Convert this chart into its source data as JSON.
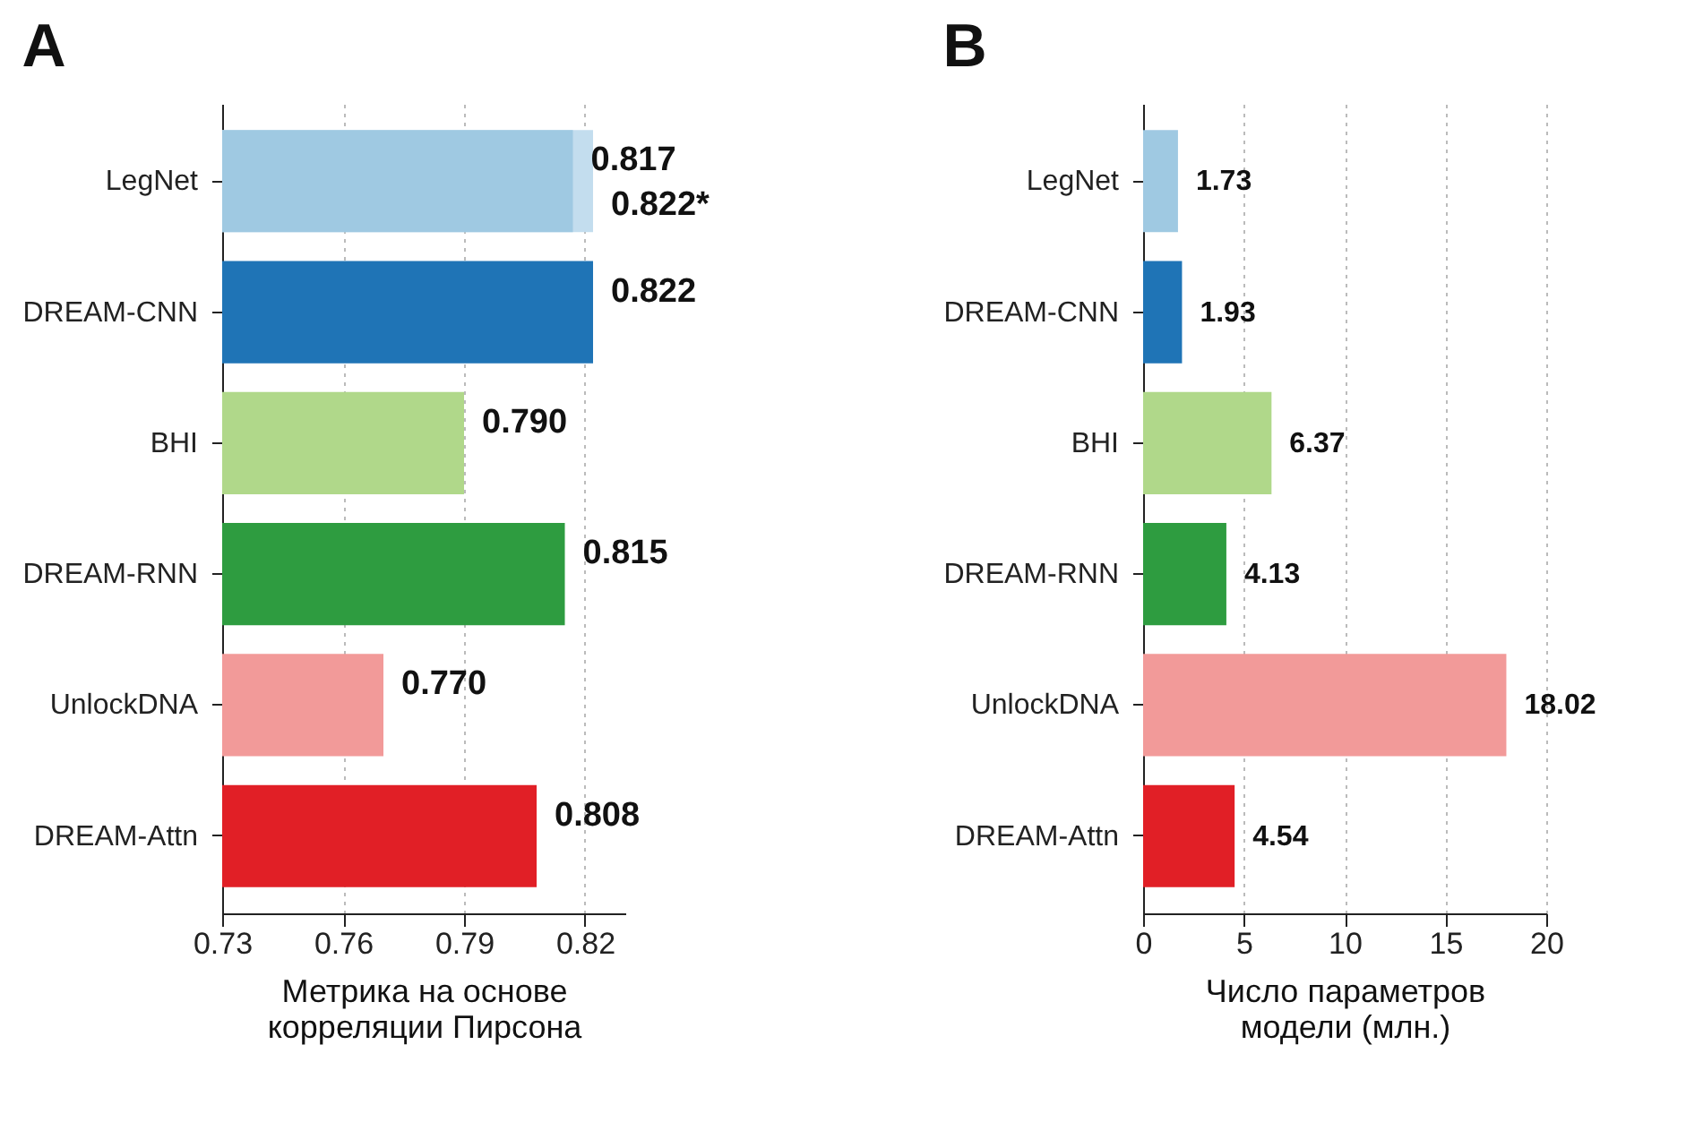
{
  "chart_data": [
    {
      "type": "bar",
      "title": "A",
      "orientation": "horizontal",
      "categories": [
        "LegNet",
        "DREAM-CNN",
        "BHI",
        "DREAM-RNN",
        "UnlockDNA",
        "DREAM-Attn"
      ],
      "xlabel": "Метрика на основе\nкорреляции Пирсона",
      "xlim": [
        0.73,
        0.83
      ],
      "xticks": [
        0.73,
        0.76,
        0.79,
        0.82
      ],
      "grid": "x",
      "series": [
        {
          "colors": [
            "#9fc9e2",
            "#1f74b6",
            "#b0d88a",
            "#2e9c40",
            "#f29a99",
            "#e11f26"
          ],
          "values": [
            0.817,
            0.822,
            0.79,
            0.815,
            0.77,
            0.808
          ],
          "value_labels": [
            "0.817",
            "0.822",
            "0.790",
            "0.815",
            "0.770",
            "0.808"
          ]
        },
        {
          "colors": [
            "#c3ddee",
            null,
            null,
            null,
            null,
            null
          ],
          "values": [
            0.822,
            null,
            null,
            null,
            null,
            null
          ],
          "value_labels": [
            "0.822*",
            null,
            null,
            null,
            null,
            null
          ]
        }
      ]
    },
    {
      "type": "bar",
      "title": "B",
      "orientation": "horizontal",
      "categories": [
        "LegNet",
        "DREAM-CNN",
        "BHI",
        "DREAM-RNN",
        "UnlockDNA",
        "DREAM-Attn"
      ],
      "xlabel": "Число параметров\nмодели (млн.)",
      "xlim": [
        0,
        20
      ],
      "xticks": [
        0,
        5,
        10,
        15,
        20
      ],
      "grid": "x",
      "data_labels": true,
      "series": [
        {
          "colors": [
            "#9fc9e2",
            "#1f74b6",
            "#b0d88a",
            "#2e9c40",
            "#f29a99",
            "#e11f26"
          ],
          "values": [
            1.73,
            1.93,
            6.37,
            4.13,
            18.02,
            4.54
          ]
        }
      ]
    }
  ]
}
